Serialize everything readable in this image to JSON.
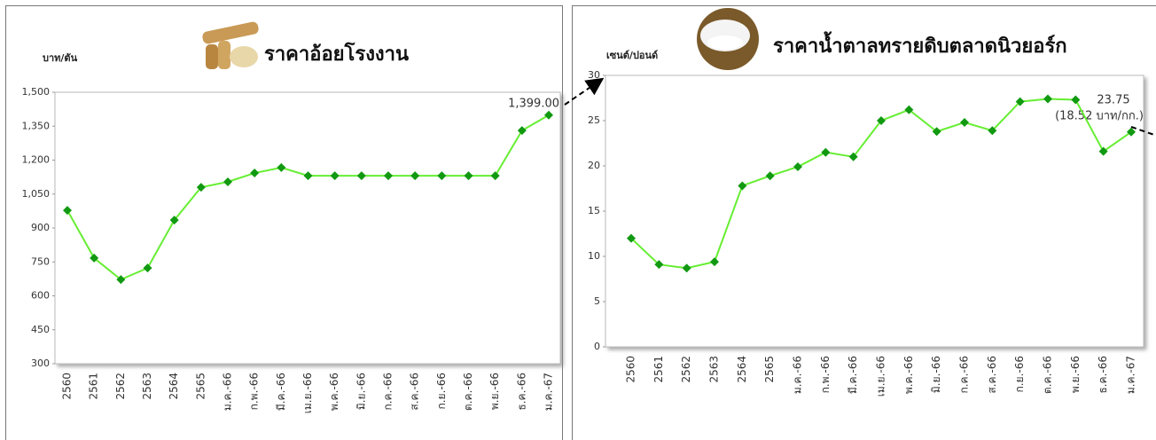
{
  "chart_data": [
    {
      "type": "line",
      "title": "ราคาอ้อยโรงงาน",
      "y_label": "บาท/ตัน",
      "categories": [
        "2560",
        "2561",
        "2562",
        "2563",
        "2564",
        "2565",
        "ม.ค.-66",
        "ก.พ.-66",
        "มี.ค.-66",
        "เม.ย.-66",
        "พ.ค.-66",
        "มิ.ย.-66",
        "ก.ค.-66",
        "ส.ค.-66",
        "ก.ย.-66",
        "ต.ค.-66",
        "พ.ย.-66",
        "ธ.ค.-66",
        "ม.ค.-67"
      ],
      "series": [
        {
          "name": "ราคาอ้อยโรงงาน",
          "color": "#66ee33",
          "marker_color": "#119911",
          "values": [
            978,
            767,
            672,
            723,
            935,
            1080,
            1104,
            1143,
            1167,
            1131,
            1131,
            1131,
            1131,
            1131,
            1131,
            1131,
            1131,
            1331,
            1399
          ],
          "value_labels": [
            null,
            null,
            null,
            null,
            null,
            null,
            null,
            null,
            null,
            null,
            null,
            null,
            null,
            null,
            null,
            null,
            null,
            null,
            "1,399.00"
          ]
        }
      ],
      "ylim": [
        300,
        1500
      ],
      "yticks": [
        300,
        450,
        600,
        750,
        900,
        {
          "value": 1050,
          "label": "1,050"
        },
        {
          "value": 1200,
          "label": "1,200"
        },
        {
          "value": 1350,
          "label": "1,350"
        },
        {
          "value": 1500,
          "label": "1,500"
        }
      ]
    },
    {
      "type": "line",
      "title": "ราคาน้ำตาลทรายดิบตลาดนิวยอร์ก",
      "y_label": "เซนต์/ปอนด์",
      "annotation": "(18.52 บาท/กก.)",
      "categories": [
        "2560",
        "2561",
        "2562",
        "2563",
        "2564",
        "2565",
        "ม.ค.-66",
        "ก.พ.-66",
        "มี.ค.-66",
        "เม.ย.-66",
        "พ.ค.-66",
        "มิ.ย.-66",
        "ก.ค.-66",
        "ส.ค.-66",
        "ก.ย.-66",
        "ต.ค.-66",
        "พ.ย.-66",
        "ธ.ค.-66",
        "ม.ค.-67"
      ],
      "series": [
        {
          "name": "ราคาน้ำตาลทรายดิบตลาดนิวยอร์ก",
          "color": "#66ee33",
          "marker_color": "#119911",
          "values": [
            12.0,
            9.1,
            8.7,
            9.4,
            17.8,
            18.9,
            19.9,
            21.5,
            21.0,
            25.0,
            26.2,
            23.8,
            24.8,
            23.9,
            27.1,
            27.4,
            27.3,
            21.6,
            23.75
          ],
          "labeled": [
            18
          ]
        }
      ],
      "ylim": [
        0,
        30
      ],
      "yticks": [
        0,
        5,
        10,
        15,
        20,
        25,
        30
      ]
    }
  ]
}
